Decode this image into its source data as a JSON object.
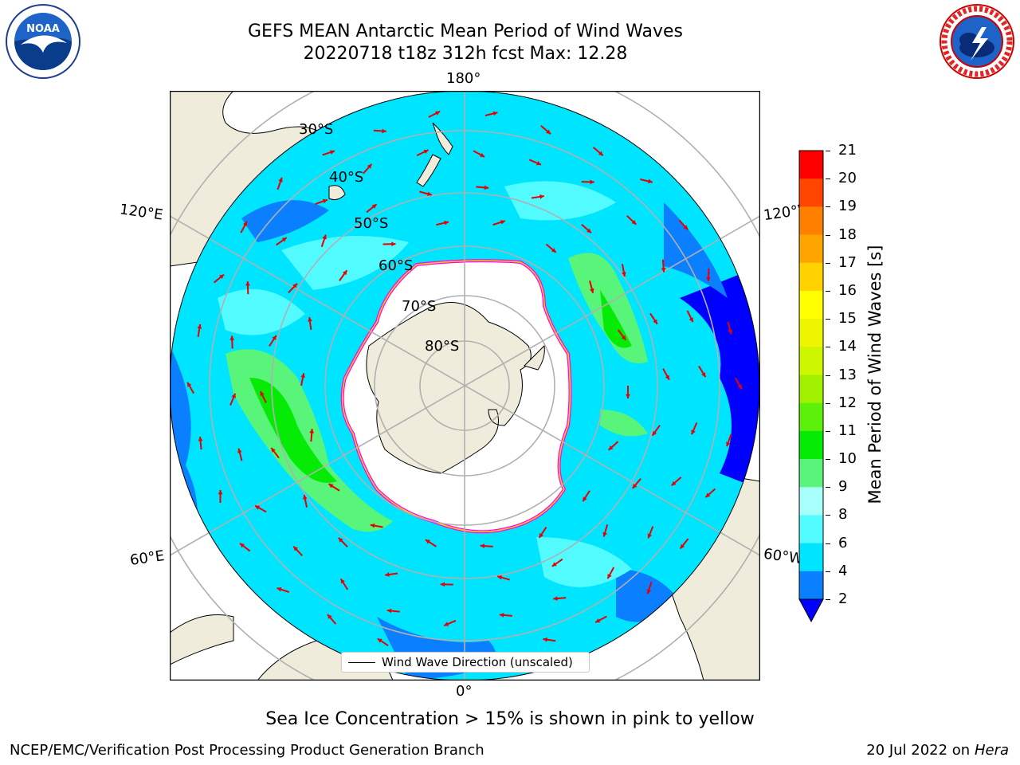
{
  "title": {
    "line1": "GEFS MEAN Antarctic Mean Period of Wind Waves",
    "line2": "20220718 t18z 312h fcst   Max: 12.28"
  },
  "logos": {
    "left": "NOAA",
    "right": "NATIONAL WEATHER SERVICE"
  },
  "map": {
    "projection": "south polar stereographic",
    "lon_labels": {
      "top": "180°",
      "bottom": "0°",
      "upper_left": "120°E",
      "upper_right": "120°W",
      "lower_left": "60°E",
      "lower_right": "60°W"
    },
    "lat_labels": [
      "30°S",
      "40°S",
      "50°S",
      "60°S",
      "70°S",
      "80°S"
    ],
    "legend": "Wind Wave Direction (unscaled)",
    "land_color": "#efecdc",
    "arrow_color": "#e60000"
  },
  "colorbar": {
    "label": "Mean Period of Wind Waves [s]",
    "ticks": [
      "2",
      "4",
      "6",
      "8",
      "9",
      "10",
      "11",
      "12",
      "13",
      "14",
      "15",
      "16",
      "17",
      "18",
      "19",
      "20",
      "21"
    ],
    "colors": [
      "#0000ff",
      "#0a7fff",
      "#00e5ff",
      "#52fbff",
      "#a6fffa",
      "#59f57a",
      "#06eb06",
      "#5df00a",
      "#a0f000",
      "#ccf700",
      "#eef500",
      "#ffff00",
      "#ffd200",
      "#ffa500",
      "#ff8000",
      "#ff4500",
      "#ff0000"
    ]
  },
  "caption": "Sea Ice Concentration > 15% is shown in pink to yellow",
  "footer": {
    "left": "NCEP/EMC/Verification Post Processing Product Generation Branch",
    "right_date": "20 Jul 2022 on ",
    "right_host": "Hera"
  }
}
